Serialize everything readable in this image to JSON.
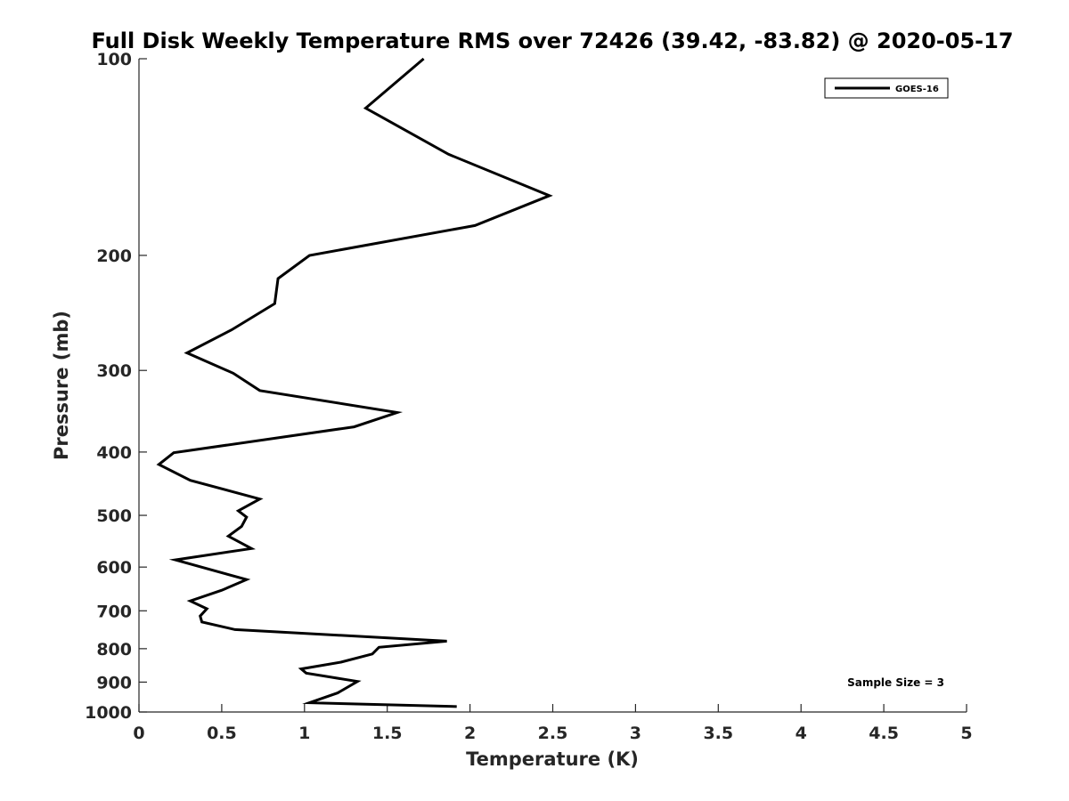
{
  "chart_data": {
    "type": "line",
    "title": "Full Disk Weekly Temperature RMS over 72426 (39.42, -83.82) @ 2020-05-17",
    "xlabel": "Temperature (K)",
    "ylabel": "Pressure (mb)",
    "xlim": [
      0,
      5
    ],
    "ylim": [
      100,
      1000
    ],
    "y_scale": "log",
    "y_direction": "reversed",
    "x_ticks": [
      0,
      0.5,
      1,
      1.5,
      2,
      2.5,
      3,
      3.5,
      4,
      4.5,
      5
    ],
    "x_tick_labels": [
      "0",
      "0.5",
      "1",
      "1.5",
      "2",
      "2.5",
      "3",
      "3.5",
      "4",
      "4.5",
      "5"
    ],
    "y_ticks": [
      100,
      200,
      300,
      400,
      500,
      600,
      700,
      800,
      900,
      1000
    ],
    "y_tick_labels": [
      "100",
      "200",
      "300",
      "400",
      "500",
      "600",
      "700",
      "800",
      "900",
      "1000"
    ],
    "grid": false,
    "legend_position": "top-right",
    "annotation": "Sample Size = 3",
    "series": [
      {
        "name": "GOES-16",
        "color": "#000000",
        "x": [
          1.72,
          1.37,
          1.87,
          2.48,
          2.03,
          1.03,
          0.84,
          0.82,
          0.56,
          0.29,
          0.57,
          0.73,
          1.56,
          1.3,
          0.21,
          0.12,
          0.31,
          0.73,
          0.6,
          0.65,
          0.62,
          0.54,
          0.68,
          0.22,
          0.65,
          0.5,
          0.31,
          0.41,
          0.37,
          0.38,
          0.58,
          1.86,
          1.45,
          1.41,
          1.22,
          0.98,
          1.01,
          1.32,
          1.2,
          1.03,
          1.92
        ],
        "y": [
          100,
          119,
          140,
          162,
          180,
          200,
          217,
          237,
          260,
          282,
          303,
          322,
          348,
          366,
          401,
          418,
          442,
          472,
          492,
          503,
          520,
          538,
          562,
          585,
          627,
          651,
          676,
          695,
          713,
          728,
          748,
          779,
          796,
          815,
          839,
          859,
          872,
          898,
          935,
          968,
          981
        ]
      }
    ]
  }
}
